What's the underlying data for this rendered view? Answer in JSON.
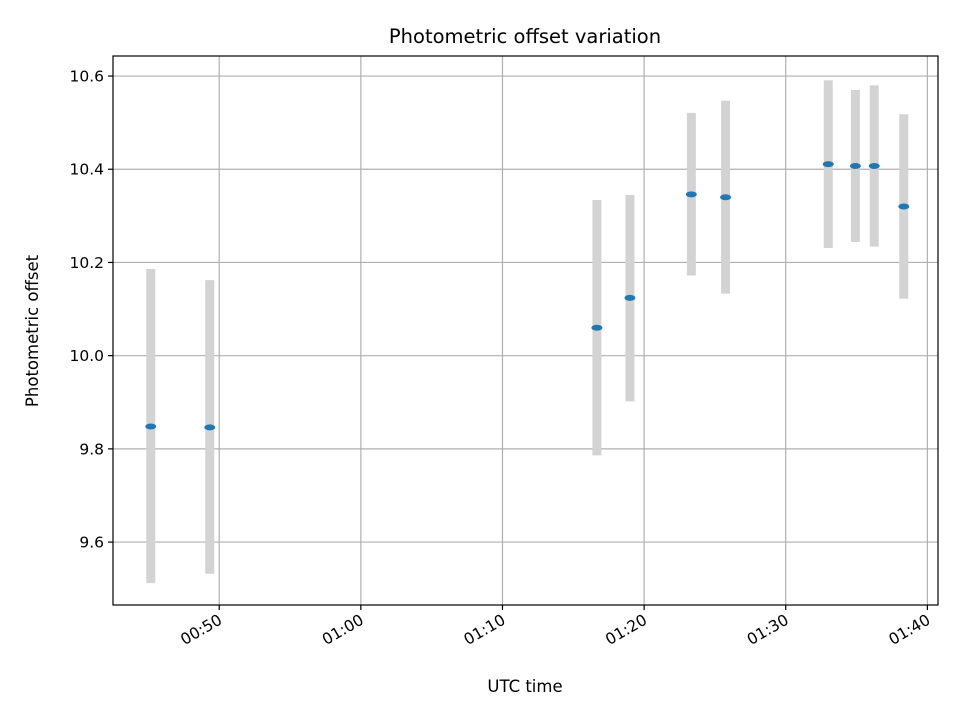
{
  "chart_data": {
    "type": "scatter",
    "title": "Photometric offset variation",
    "xlabel": "UTC time",
    "ylabel": "Photometric offset",
    "xlim": [
      "00:42:30",
      "01:40:45"
    ],
    "ylim": [
      9.465,
      10.643
    ],
    "x_ticks": [
      "00:50",
      "01:00",
      "01:10",
      "01:20",
      "01:30",
      "01:40"
    ],
    "y_ticks": [
      "9.6",
      "9.8",
      "10.0",
      "10.2",
      "10.4",
      "10.6"
    ],
    "grid": true,
    "colors": {
      "point": "#1f77b4",
      "errorbar": "#d3d3d3",
      "grid": "#b0b0b0",
      "axes": "#000000"
    },
    "points": [
      {
        "time": "00:45:10",
        "value": 9.848,
        "err_low": 9.512,
        "err_high": 10.186
      },
      {
        "time": "00:49:20",
        "value": 9.846,
        "err_low": 9.532,
        "err_high": 10.162
      },
      {
        "time": "01:16:40",
        "value": 10.06,
        "err_low": 9.786,
        "err_high": 10.334
      },
      {
        "time": "01:19:00",
        "value": 10.124,
        "err_low": 9.902,
        "err_high": 10.345
      },
      {
        "time": "01:23:20",
        "value": 10.346,
        "err_low": 10.172,
        "err_high": 10.521
      },
      {
        "time": "01:25:45",
        "value": 10.34,
        "err_low": 10.133,
        "err_high": 10.547
      },
      {
        "time": "01:33:00",
        "value": 10.411,
        "err_low": 10.231,
        "err_high": 10.591
      },
      {
        "time": "01:34:55",
        "value": 10.407,
        "err_low": 10.244,
        "err_high": 10.57
      },
      {
        "time": "01:36:15",
        "value": 10.407,
        "err_low": 10.234,
        "err_high": 10.58
      },
      {
        "time": "01:38:20",
        "value": 10.32,
        "err_low": 10.122,
        "err_high": 10.518
      }
    ]
  }
}
